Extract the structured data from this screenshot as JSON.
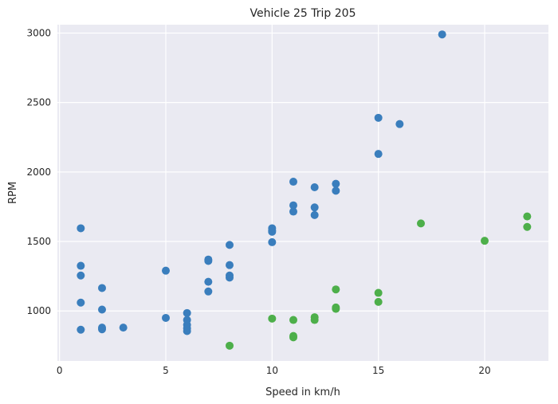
{
  "chart_data": {
    "type": "scatter",
    "title": "Vehicle 25 Trip 205",
    "xlabel": "Speed in km/h",
    "ylabel": "RPM",
    "xlim": [
      -0.1,
      23
    ],
    "ylim": [
      640,
      3060
    ],
    "xticks": [
      0,
      5,
      10,
      15,
      20
    ],
    "yticks": [
      1000,
      1500,
      2000,
      2500,
      3000
    ],
    "grid": true,
    "series": [
      {
        "color": "#3a7ebd",
        "points": [
          [
            1,
            1595
          ],
          [
            1,
            1325
          ],
          [
            1,
            1255
          ],
          [
            1,
            1060
          ],
          [
            1,
            865
          ],
          [
            2,
            1165
          ],
          [
            2,
            1010
          ],
          [
            2,
            880
          ],
          [
            2,
            868
          ],
          [
            3,
            880
          ],
          [
            5,
            1290
          ],
          [
            5,
            950
          ],
          [
            6,
            985
          ],
          [
            6,
            935
          ],
          [
            6,
            900
          ],
          [
            6,
            875
          ],
          [
            6,
            855
          ],
          [
            7,
            1370
          ],
          [
            7,
            1360
          ],
          [
            7,
            1210
          ],
          [
            7,
            1140
          ],
          [
            8,
            1475
          ],
          [
            8,
            1330
          ],
          [
            8,
            1255
          ],
          [
            8,
            1240
          ],
          [
            10,
            1595
          ],
          [
            10,
            1580
          ],
          [
            10,
            1570
          ],
          [
            10,
            1495
          ],
          [
            11,
            1930
          ],
          [
            11,
            1760
          ],
          [
            11,
            1715
          ],
          [
            12,
            1890
          ],
          [
            12,
            1745
          ],
          [
            12,
            1690
          ],
          [
            13,
            1915
          ],
          [
            13,
            1865
          ],
          [
            15,
            2390
          ],
          [
            15,
            2130
          ],
          [
            16,
            2345
          ],
          [
            18,
            2990
          ]
        ]
      },
      {
        "color": "#4daf4a",
        "points": [
          [
            8,
            750
          ],
          [
            10,
            945
          ],
          [
            11,
            935
          ],
          [
            11,
            820
          ],
          [
            11,
            810
          ],
          [
            12,
            955
          ],
          [
            12,
            935
          ],
          [
            13,
            1155
          ],
          [
            13,
            1025
          ],
          [
            13,
            1015
          ],
          [
            15,
            1130
          ],
          [
            15,
            1065
          ],
          [
            17,
            1630
          ],
          [
            20,
            1505
          ],
          [
            22,
            1680
          ],
          [
            22,
            1605
          ]
        ]
      }
    ]
  }
}
